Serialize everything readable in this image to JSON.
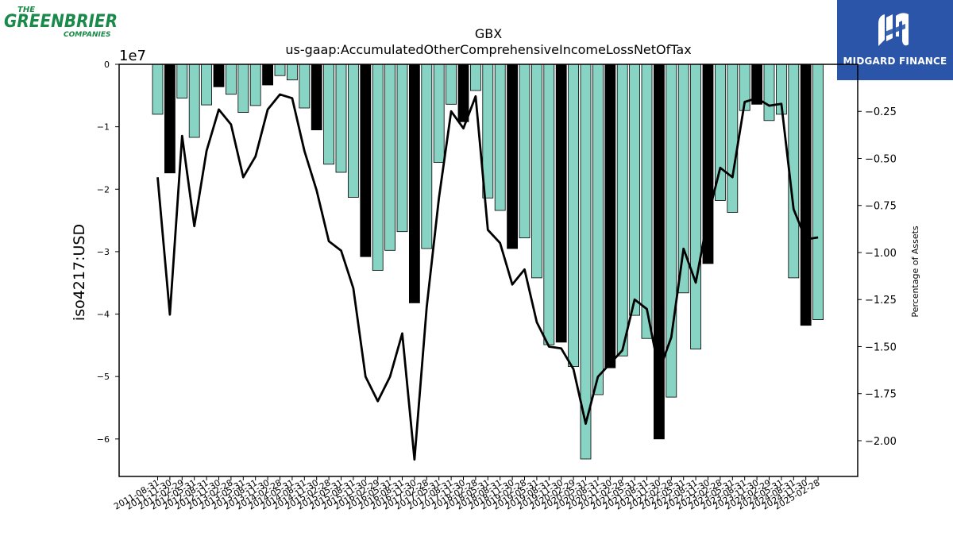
{
  "branding": {
    "company_logo": {
      "line1": "THE",
      "line2": "GREENBRIER",
      "line3": "COMPANIES",
      "color": "#1a8a4a"
    },
    "watermark": {
      "text": "MIDGARD FINANCE",
      "bg": "#2a55a8"
    }
  },
  "chart_data": {
    "type": "bar",
    "title": "GBX",
    "subtitle": "us-gaap:AccumulatedOtherComprehensiveIncomeLossNetOfTax",
    "ylabel": "iso4217:USD",
    "y2label": "Percentage of Assets",
    "y_scale_label": "1e7",
    "ylim": [
      -6.6,
      0
    ],
    "y_ticks": [
      0,
      -1,
      -2,
      -3,
      -4,
      -5,
      -6
    ],
    "y2lim": [
      -2.19,
      0.0
    ],
    "y2_ticks": [
      -0.25,
      -0.5,
      -0.75,
      -1.0,
      -1.25,
      -1.5,
      -1.75,
      -2.0
    ],
    "bar_color": "#88d4c4",
    "highlight_color": "#000000",
    "line_color": "#000000",
    "categories": [
      "2011-08-31",
      "2011-11-30",
      "2012-02-29",
      "2012-05-31",
      "2012-08-31",
      "2012-11-30",
      "2013-02-28",
      "2013-05-31",
      "2013-08-31",
      "2013-11-30",
      "2014-02-28",
      "2014-05-31",
      "2014-08-31",
      "2014-11-30",
      "2015-02-28",
      "2015-05-31",
      "2015-08-31",
      "2015-11-30",
      "2016-02-29",
      "2016-05-31",
      "2016-08-31",
      "2016-11-30",
      "2017-02-28",
      "2017-05-31",
      "2017-08-31",
      "2017-11-30",
      "2018-02-28",
      "2018-05-31",
      "2018-08-31",
      "2018-11-30",
      "2019-02-28",
      "2019-05-31",
      "2019-08-31",
      "2019-11-30",
      "2020-02-29",
      "2020-05-31",
      "2020-08-31",
      "2020-11-30",
      "2021-02-28",
      "2021-05-31",
      "2021-08-31",
      "2021-11-30",
      "2022-02-28",
      "2022-05-31",
      "2022-08-31",
      "2022-11-30",
      "2023-02-28",
      "2023-05-31",
      "2023-08-31",
      "2023-11-30",
      "2024-02-29",
      "2024-05-31",
      "2024-08-31",
      "2024-11-30",
      "2025-02-28"
    ],
    "x_tick_labels": [
      "2011-08-31",
      "2011-11-30",
      "2012-02-29",
      "2012-05-31",
      "2012-08-31",
      "2012-11-30",
      "2013-02-28",
      "2013-05-31",
      "2013-08-31",
      "2013-11-30",
      "2014-02-28",
      "2014-05-31",
      "2014-08-31",
      "2014-11-30",
      "2015-02-28",
      "2015-05-31",
      "2015-08-31",
      "2015-11-30",
      "2016-02-29",
      "2016-05-31",
      "2016-08-31",
      "2016-11-30",
      "2017-02-28",
      "2017-05-31",
      "2017-08-31",
      "2017-11-30",
      "2018-02-28",
      "2018-05-31",
      "2018-08-31",
      "2018-11-30",
      "2019-02-28",
      "2019-05-31",
      "2019-08-31",
      "2019-11-30",
      "2020-02-29",
      "2020-05-31",
      "2020-08-31",
      "2020-11-30",
      "2021-02-28",
      "2021-05-31",
      "2021-08-31",
      "2021-11-30",
      "2022-02-28",
      "2022-05-31",
      "2022-08-31",
      "2022-11-30",
      "2023-02-28",
      "2023-05-31",
      "2023-08-31",
      "2023-11-30",
      "2024-02-29",
      "2024-05-31",
      "2024-08-31",
      "2024-11-30",
      "2025-02-28"
    ],
    "series": [
      {
        "type": "bar",
        "axis": "left",
        "values": [
          -0.8,
          -1.74,
          -0.54,
          -1.17,
          -0.65,
          -0.36,
          -0.48,
          -0.77,
          -0.66,
          -0.33,
          -0.18,
          -0.25,
          -0.7,
          -1.05,
          -1.6,
          -1.73,
          -2.13,
          -3.08,
          -3.3,
          -2.98,
          -2.68,
          -3.82,
          -2.95,
          -1.57,
          -0.64,
          -0.92,
          -0.42,
          -2.14,
          -2.34,
          -2.95,
          -2.78,
          -3.42,
          -4.49,
          -4.45,
          -4.84,
          -6.32,
          -5.29,
          -4.86,
          -4.67,
          -4.02,
          -4.39,
          -6.0,
          -5.33,
          -3.66,
          -4.56,
          -3.19,
          -2.18,
          -2.37,
          -0.74,
          -0.64,
          -0.9,
          -0.8,
          -3.42,
          -4.18,
          -4.09
        ],
        "highlight": [
          false,
          true,
          false,
          false,
          false,
          true,
          false,
          false,
          false,
          true,
          false,
          false,
          false,
          true,
          false,
          false,
          false,
          true,
          false,
          false,
          false,
          true,
          false,
          false,
          false,
          true,
          false,
          false,
          false,
          true,
          false,
          false,
          false,
          true,
          false,
          false,
          false,
          true,
          false,
          false,
          false,
          true,
          false,
          false,
          false,
          true,
          false,
          false,
          false,
          true,
          false,
          false,
          false,
          true,
          false
        ]
      },
      {
        "type": "line",
        "axis": "right",
        "values": [
          -0.6,
          -1.33,
          -0.38,
          -0.86,
          -0.46,
          -0.24,
          -0.32,
          -0.6,
          -0.49,
          -0.24,
          -0.16,
          -0.18,
          -0.46,
          -0.67,
          -0.94,
          -0.99,
          -1.19,
          -1.66,
          -1.79,
          -1.66,
          -1.43,
          -2.1,
          -1.29,
          -0.71,
          -0.25,
          -0.34,
          -0.17,
          -0.88,
          -0.95,
          -1.17,
          -1.09,
          -1.37,
          -1.5,
          -1.51,
          -1.62,
          -1.91,
          -1.66,
          -1.59,
          -1.52,
          -1.25,
          -1.3,
          -1.63,
          -1.45,
          -0.98,
          -1.16,
          -0.81,
          -0.55,
          -0.6,
          -0.2,
          -0.18,
          -0.22,
          -0.21,
          -0.77,
          -0.93,
          -0.92
        ]
      }
    ]
  }
}
